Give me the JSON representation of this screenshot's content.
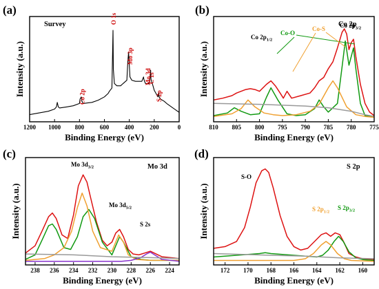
{
  "chart_data": [
    {
      "panel": "(a)",
      "type": "line",
      "title": "Survey",
      "xlabel": "Binding Energy (eV)",
      "ylabel": "Intensity (a.u.)",
      "xlim": [
        1200,
        0
      ],
      "x_reversed": true,
      "xticks": [
        1200,
        1000,
        800,
        600,
        400,
        200,
        0
      ],
      "series": [
        {
          "color": "#000000",
          "x": [
            1200,
            1150,
            1100,
            1050,
            1000,
            985,
            978,
            970,
            960,
            900,
            850,
            800,
            795,
            785,
            780,
            770,
            700,
            650,
            600,
            570,
            560,
            540,
            531,
            528,
            520,
            500,
            470,
            450,
            420,
            412,
            406,
            398,
            395,
            380,
            350,
            300,
            286,
            283,
            278,
            270,
            240,
            233,
            229,
            226,
            210,
            200,
            180,
            170,
            164,
            160,
            150,
            120,
            100,
            50,
            0
          ],
          "y": [
            4,
            5,
            6,
            7,
            9,
            11,
            15,
            11,
            10,
            11,
            12,
            14,
            18,
            20,
            16,
            14,
            15,
            17,
            20,
            23,
            25,
            28,
            80,
            45,
            32,
            30,
            30,
            32,
            35,
            52,
            60,
            45,
            38,
            35,
            34,
            34,
            38,
            36,
            34,
            32,
            32,
            38,
            44,
            36,
            30,
            26,
            22,
            20,
            24,
            20,
            18,
            16,
            14,
            10,
            6
          ]
        }
      ],
      "annotations": [
        {
          "text": "Co 2p",
          "x": 785,
          "color": "#cc0000"
        },
        {
          "text": "O 1s",
          "x": 531,
          "color": "#cc0000"
        },
        {
          "text": "Mo 3p",
          "x": 406,
          "color": "#cc0000"
        },
        {
          "text": "Mo 3d",
          "x": 250,
          "color": "#cc0000"
        },
        {
          "text": "C 1s",
          "x": 222,
          "color": "#cc0000"
        },
        {
          "text": "S 2p",
          "x": 164,
          "color": "#cc0000"
        }
      ]
    },
    {
      "panel": "(b)",
      "type": "line",
      "title": "Co 2p",
      "xlabel": "Binding Energy (eV)",
      "ylabel": "Intensity (a.u.)",
      "xlim": [
        810,
        775
      ],
      "x_reversed": true,
      "xticks": [
        810,
        805,
        800,
        795,
        790,
        785,
        780,
        775
      ],
      "series": [
        {
          "color": "#dd1111",
          "x": [
            810,
            808,
            806,
            805,
            803,
            802,
            801,
            800,
            798.5,
            797.5,
            796.5,
            795.5,
            794.8,
            794,
            793,
            791,
            789,
            788,
            787,
            786,
            785,
            784,
            783,
            782,
            781.5,
            781,
            780.5,
            780,
            779.5,
            779,
            778,
            777,
            776,
            775
          ],
          "y": [
            22,
            24,
            27,
            30,
            34,
            35,
            34,
            32,
            40,
            44,
            38,
            30,
            24,
            32,
            24,
            27,
            30,
            36,
            44,
            48,
            58,
            66,
            82,
            100,
            104,
            98,
            80,
            88,
            92,
            72,
            40,
            18,
            8,
            4
          ]
        },
        {
          "color": "#119911",
          "x": [
            810,
            807,
            805.5,
            804,
            802,
            800,
            798.5,
            797.5,
            796,
            794,
            792,
            790,
            788,
            787,
            786,
            785,
            783,
            782,
            781.3,
            780.5,
            780,
            779.5,
            779,
            778,
            777,
            775
          ],
          "y": [
            4,
            7,
            13,
            9,
            5,
            6,
            25,
            36,
            22,
            6,
            4,
            5,
            12,
            22,
            14,
            8,
            18,
            60,
            90,
            62,
            72,
            82,
            58,
            18,
            4,
            2
          ]
        },
        {
          "color": "#f0a030",
          "x": [
            810,
            806,
            804,
            802.5,
            801,
            799,
            797,
            795,
            792,
            789,
            787,
            785,
            784,
            783,
            781,
            779,
            777,
            775
          ],
          "y": [
            3,
            6,
            12,
            22,
            14,
            7,
            5,
            4,
            5,
            9,
            17,
            36,
            44,
            36,
            14,
            5,
            3,
            2
          ]
        },
        {
          "color": "#999999",
          "x": [
            810,
            800,
            790,
            785,
            780,
            777,
            775
          ],
          "y": [
            18,
            17,
            15,
            13,
            9,
            5,
            3
          ]
        }
      ],
      "annotations": [
        {
          "text": "Co 2p",
          "sub": "1/2",
          "color": "#000000"
        },
        {
          "text": "Co-O",
          "color": "#119911"
        },
        {
          "text": "Co-S",
          "color": "#f0a030"
        },
        {
          "text": "Co 2p",
          "sub": "3/2",
          "color": "#000000"
        }
      ]
    },
    {
      "panel": "(c)",
      "type": "line",
      "title": "Mo 3d",
      "xlabel": "Binding Energy (eV)",
      "ylabel": "Intensity (a.u.)",
      "xlim": [
        239,
        223
      ],
      "x_reversed": true,
      "xticks": [
        238,
        236,
        234,
        232,
        230,
        228,
        226,
        224
      ],
      "series": [
        {
          "color": "#dd1111",
          "x": [
            239,
            238,
            237.2,
            236.6,
            236.2,
            235.8,
            235.2,
            234.6,
            234,
            233.5,
            233,
            232.6,
            232.2,
            231.6,
            231,
            230.5,
            230,
            229.6,
            229.2,
            228.8,
            228.3,
            227.8,
            227.2,
            226.6,
            226,
            225.4,
            224.8,
            223
          ],
          "y": [
            10,
            18,
            36,
            50,
            54,
            48,
            30,
            26,
            52,
            84,
            96,
            88,
            70,
            44,
            24,
            18,
            22,
            32,
            36,
            28,
            14,
            9,
            8,
            10,
            12,
            9,
            6,
            4
          ]
        },
        {
          "color": "#119911",
          "x": [
            239,
            238,
            237.2,
            236.6,
            236.2,
            235.8,
            235,
            234.3,
            233.6,
            233,
            232.4,
            231.8,
            231,
            230,
            229.6,
            229.2,
            228.8,
            228,
            227,
            226,
            225,
            223
          ],
          "y": [
            3,
            8,
            26,
            40,
            42,
            36,
            16,
            14,
            28,
            50,
            58,
            48,
            22,
            8,
            18,
            28,
            22,
            6,
            3,
            2,
            2,
            2
          ]
        },
        {
          "color": "#f0a030",
          "x": [
            239,
            237,
            236,
            235,
            234.2,
            233.6,
            233.1,
            232.6,
            232,
            231.2,
            230,
            229.3,
            228.8,
            228.3,
            227.5,
            226,
            223
          ],
          "y": [
            2,
            4,
            8,
            16,
            34,
            60,
            76,
            62,
            34,
            16,
            12,
            30,
            22,
            8,
            3,
            2,
            2
          ]
        },
        {
          "color": "#8833cc",
          "x": [
            239,
            229,
            228,
            227,
            226.4,
            226,
            225.4,
            224.8,
            223
          ],
          "y": [
            1,
            1,
            2,
            5,
            9,
            11,
            7,
            3,
            1
          ]
        },
        {
          "color": "#999999",
          "x": [
            239,
            234,
            230,
            226,
            223
          ],
          "y": [
            9,
            8,
            6,
            5,
            4
          ]
        }
      ],
      "annotations": [
        {
          "text": "Mo 3d",
          "sub": "3/2",
          "color": "#000000"
        },
        {
          "text": "Mo 3d",
          "sub": "5/2",
          "color": "#000000"
        },
        {
          "text": "S 2s",
          "color": "#000000"
        }
      ]
    },
    {
      "panel": "(d)",
      "type": "line",
      "title": "S 2p",
      "xlabel": "Binding Energy (eV)",
      "ylabel": "Intensity (a.u.)",
      "xlim": [
        173,
        159
      ],
      "x_reversed": true,
      "xticks": [
        172,
        170,
        168,
        166,
        164,
        162,
        160
      ],
      "series": [
        {
          "color": "#dd1111",
          "x": [
            173,
            172,
            171,
            170.3,
            169.8,
            169.3,
            168.8,
            168.5,
            168.2,
            167.8,
            167.2,
            166.6,
            166,
            165.4,
            164.8,
            164.2,
            163.6,
            163.2,
            162.8,
            162.4,
            162,
            161.6,
            161.2,
            160.6,
            160,
            159
          ],
          "y": [
            16,
            18,
            24,
            40,
            64,
            92,
            106,
            108,
            104,
            86,
            54,
            30,
            18,
            14,
            16,
            24,
            32,
            34,
            30,
            34,
            32,
            22,
            10,
            6,
            4,
            3
          ]
        },
        {
          "color": "#119911",
          "x": [
            173,
            171,
            169,
            168.5,
            168,
            167,
            166,
            165,
            164,
            163.5,
            163,
            162.5,
            162.1,
            161.7,
            161.2,
            160.6,
            160,
            159
          ],
          "y": [
            6,
            8,
            10,
            11,
            10,
            9,
            8,
            7,
            6,
            8,
            14,
            24,
            30,
            24,
            12,
            5,
            3,
            2
          ]
        },
        {
          "color": "#f0a030",
          "x": [
            173,
            166,
            165,
            164.3,
            163.6,
            163.2,
            162.8,
            162.2,
            161.6,
            161,
            159
          ],
          "y": [
            2,
            2,
            4,
            10,
            20,
            24,
            20,
            10,
            4,
            2,
            1
          ]
        },
        {
          "color": "#999999",
          "x": [
            173,
            168,
            165,
            162,
            159
          ],
          "y": [
            10,
            8,
            7,
            5,
            4
          ]
        }
      ],
      "annotations": [
        {
          "text": "S-O",
          "color": "#000000"
        },
        {
          "text": "S 2p",
          "sub": "1/2",
          "color": "#f0a030"
        },
        {
          "text": "S 2p",
          "sub": "3/2",
          "color": "#119911"
        }
      ]
    }
  ]
}
